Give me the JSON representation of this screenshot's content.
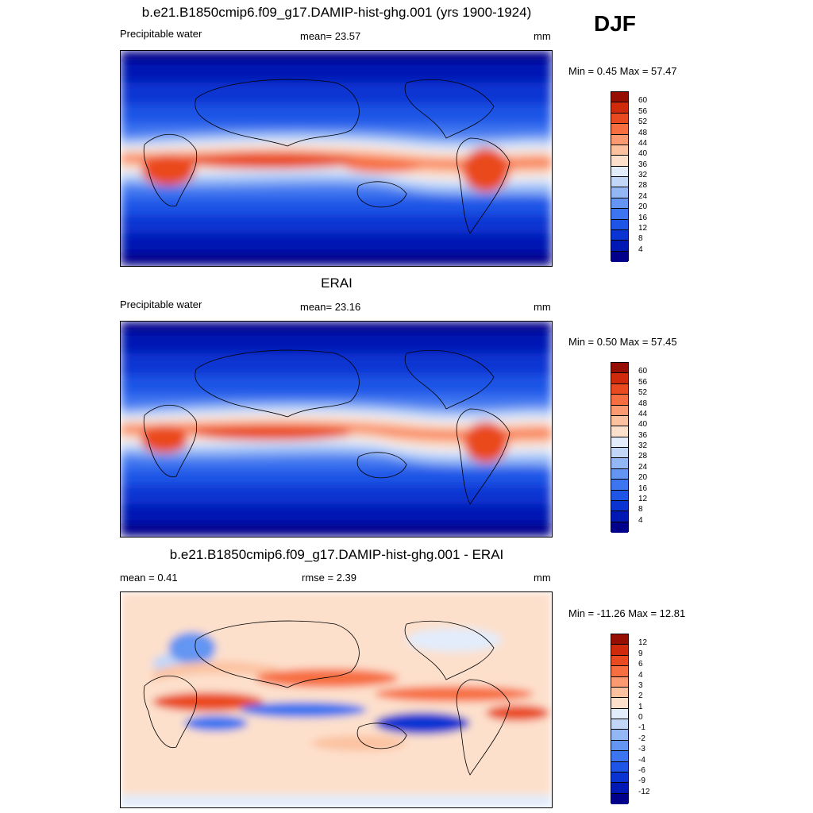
{
  "season": "DJF",
  "panels": [
    {
      "title": "b.e21.B1850cmip6.f09_g17.DAMIP-hist-ghg.001 (yrs 1900-1924)",
      "left_label": "Precipitable water",
      "center_label": "mean=  23.57",
      "right_label": "mm",
      "minmax": "Min =   0.45 Max =  57.47"
    },
    {
      "title": "ERAI",
      "left_label": "Precipitable water",
      "center_label": "mean=  23.16",
      "right_label": "mm",
      "minmax": "Min =   0.50 Max =  57.45"
    },
    {
      "title": "b.e21.B1850cmip6.f09_g17.DAMIP-hist-ghg.001 - ERAI",
      "left_label": "mean =   0.41",
      "center_label": "rmse =   2.39",
      "right_label": "mm",
      "minmax": "Min = -11.26 Max =  12.81"
    }
  ],
  "chart_data": [
    {
      "type": "heatmap",
      "title": "b.e21.B1850cmip6.f09_g17.DAMIP-hist-ghg.001 (yrs 1900-1924)",
      "variable": "Precipitable water",
      "units": "mm",
      "mean": 23.57,
      "min": 0.45,
      "max": 57.47,
      "colorbar_levels": [
        4,
        8,
        12,
        16,
        20,
        24,
        28,
        32,
        36,
        40,
        44,
        48,
        52,
        56,
        60
      ],
      "colorbar_labels": [
        "60",
        "56",
        "52",
        "48",
        "44",
        "40",
        "36",
        "32",
        "28",
        "24",
        "20",
        "16",
        "12",
        "8",
        "4"
      ],
      "colorbar_colors": [
        "#00008a",
        "#0018b4",
        "#0a34d2",
        "#1e55e6",
        "#3d75f0",
        "#6495f2",
        "#93b7f5",
        "#c2d6f8",
        "#e2ecfb",
        "#fde0cc",
        "#fcc2a0",
        "#fb9a70",
        "#f76e40",
        "#ea4a1f",
        "#cf2a0c",
        "#960d02"
      ]
    },
    {
      "type": "heatmap",
      "title": "ERAI",
      "variable": "Precipitable water",
      "units": "mm",
      "mean": 23.16,
      "min": 0.5,
      "max": 57.45,
      "colorbar_levels": [
        4,
        8,
        12,
        16,
        20,
        24,
        28,
        32,
        36,
        40,
        44,
        48,
        52,
        56,
        60
      ],
      "colorbar_labels": [
        "60",
        "56",
        "52",
        "48",
        "44",
        "40",
        "36",
        "32",
        "28",
        "24",
        "20",
        "16",
        "12",
        "8",
        "4"
      ],
      "colorbar_colors": [
        "#00008a",
        "#0018b4",
        "#0a34d2",
        "#1e55e6",
        "#3d75f0",
        "#6495f2",
        "#93b7f5",
        "#c2d6f8",
        "#e2ecfb",
        "#fde0cc",
        "#fcc2a0",
        "#fb9a70",
        "#f76e40",
        "#ea4a1f",
        "#cf2a0c",
        "#960d02"
      ]
    },
    {
      "type": "heatmap",
      "title": "b.e21.B1850cmip6.f09_g17.DAMIP-hist-ghg.001 - ERAI",
      "units": "mm",
      "mean": 0.41,
      "rmse": 2.39,
      "min": -11.26,
      "max": 12.81,
      "colorbar_levels": [
        -12,
        -9,
        -6,
        -4,
        -3,
        -2,
        -1,
        0,
        1,
        2,
        3,
        4,
        6,
        9,
        12
      ],
      "colorbar_labels": [
        "12",
        "9",
        "6",
        "4",
        "3",
        "2",
        "1",
        "0",
        "-1",
        "-2",
        "-3",
        "-4",
        "-6",
        "-9",
        "-12"
      ],
      "colorbar_colors": [
        "#00008a",
        "#0018b4",
        "#0a34d2",
        "#1e55e6",
        "#3d75f0",
        "#6495f2",
        "#93b7f5",
        "#c2d6f8",
        "#e2ecfb",
        "#fde0cc",
        "#fcc2a0",
        "#fb9a70",
        "#f76e40",
        "#ea4a1f",
        "#cf2a0c",
        "#960d02"
      ]
    }
  ]
}
